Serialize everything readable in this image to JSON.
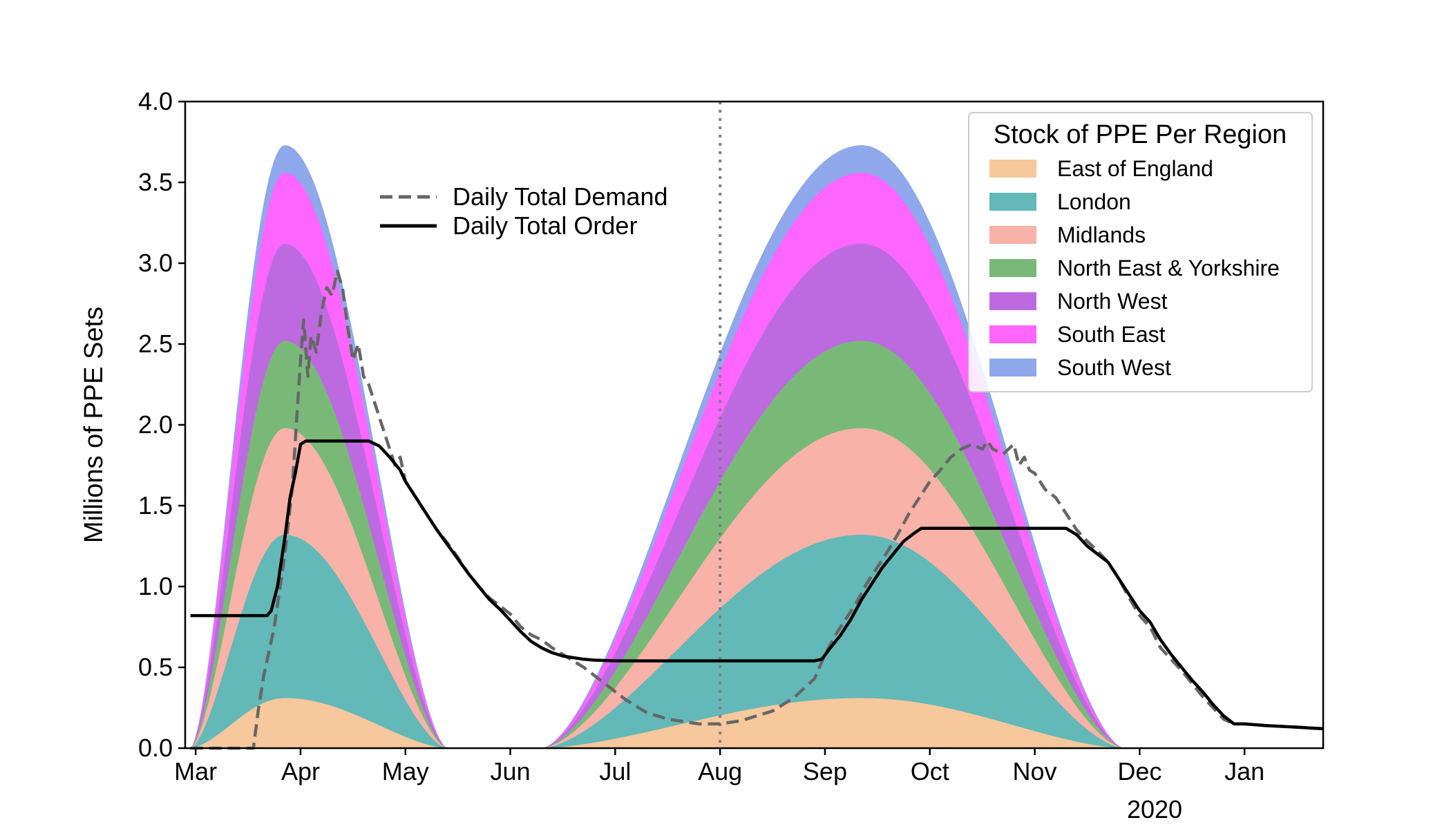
{
  "chart_data": {
    "type": "area",
    "title": "",
    "xlabel": "",
    "ylabel": "Millions of PPE Sets",
    "ylim": [
      0,
      4.0
    ],
    "xlim": [
      -0.1,
      10.75
    ],
    "yticks": [
      "0.0",
      "0.5",
      "1.0",
      "1.5",
      "2.0",
      "2.5",
      "3.0",
      "3.5",
      "4.0"
    ],
    "xticks": [
      {
        "month": 0,
        "label": "Mar"
      },
      {
        "month": 1,
        "label": "Apr"
      },
      {
        "month": 2,
        "label": "May"
      },
      {
        "month": 3,
        "label": "Jun"
      },
      {
        "month": 4,
        "label": "Jul"
      },
      {
        "month": 5,
        "label": "Aug"
      },
      {
        "month": 6,
        "label": "Sep"
      },
      {
        "month": 7,
        "label": "Oct"
      },
      {
        "month": 8,
        "label": "Nov"
      },
      {
        "month": 9,
        "label": "Dec"
      },
      {
        "month": 10,
        "label": "Jan"
      }
    ],
    "year_label": "2020",
    "vline_month": 5.0,
    "wave1": {
      "start": -0.05,
      "peak": 0.85,
      "end": 2.4
    },
    "wave2": {
      "start": 3.3,
      "peak": 6.35,
      "end": 8.85
    },
    "legend_title": "Stock of PPE Per Region",
    "stacked_series": [
      {
        "name": "East of England",
        "color": "#f6c89b",
        "peak": 0.31
      },
      {
        "name": "London",
        "color": "#63b8b8",
        "peak": 1.32
      },
      {
        "name": "Midlands",
        "color": "#f8b2a8",
        "peak": 1.98
      },
      {
        "name": "North East & Yorkshire",
        "color": "#79b978",
        "peak": 2.52
      },
      {
        "name": "North West",
        "color": "#bd6ae0",
        "peak": 3.12
      },
      {
        "name": "South East",
        "color": "#ff66ff",
        "peak": 3.56
      },
      {
        "name": "South West",
        "color": "#8fa8ec",
        "peak": 3.73
      }
    ],
    "lines": [
      {
        "name": "Daily Total Demand",
        "style": "dashed",
        "color": "#666666",
        "points": [
          [
            -0.05,
            0.0
          ],
          [
            0.55,
            0.0
          ],
          [
            0.6,
            0.25
          ],
          [
            0.65,
            0.45
          ],
          [
            0.75,
            0.75
          ],
          [
            0.85,
            1.2
          ],
          [
            0.92,
            1.6
          ],
          [
            0.97,
            2.1
          ],
          [
            1.0,
            2.4
          ],
          [
            1.03,
            2.65
          ],
          [
            1.07,
            2.3
          ],
          [
            1.1,
            2.55
          ],
          [
            1.15,
            2.45
          ],
          [
            1.2,
            2.7
          ],
          [
            1.25,
            2.85
          ],
          [
            1.3,
            2.8
          ],
          [
            1.35,
            2.95
          ],
          [
            1.4,
            2.85
          ],
          [
            1.45,
            2.6
          ],
          [
            1.5,
            2.4
          ],
          [
            1.55,
            2.5
          ],
          [
            1.6,
            2.3
          ],
          [
            1.65,
            2.25
          ],
          [
            1.7,
            2.15
          ],
          [
            1.75,
            2.05
          ],
          [
            1.8,
            1.95
          ],
          [
            1.85,
            1.85
          ],
          [
            1.9,
            1.75
          ],
          [
            1.95,
            1.8
          ],
          [
            2.0,
            1.65
          ],
          [
            2.1,
            1.55
          ],
          [
            2.2,
            1.45
          ],
          [
            2.3,
            1.35
          ],
          [
            2.4,
            1.27
          ],
          [
            2.5,
            1.18
          ],
          [
            2.6,
            1.08
          ],
          [
            2.7,
            1.0
          ],
          [
            2.8,
            0.93
          ],
          [
            2.9,
            0.88
          ],
          [
            3.0,
            0.83
          ],
          [
            3.1,
            0.75
          ],
          [
            3.2,
            0.7
          ],
          [
            3.3,
            0.67
          ],
          [
            3.4,
            0.62
          ],
          [
            3.5,
            0.58
          ],
          [
            3.6,
            0.54
          ],
          [
            3.7,
            0.5
          ],
          [
            3.8,
            0.45
          ],
          [
            3.9,
            0.4
          ],
          [
            4.0,
            0.35
          ],
          [
            4.1,
            0.3
          ],
          [
            4.2,
            0.26
          ],
          [
            4.3,
            0.22
          ],
          [
            4.4,
            0.2
          ],
          [
            4.5,
            0.18
          ],
          [
            4.6,
            0.17
          ],
          [
            4.7,
            0.16
          ],
          [
            4.8,
            0.15
          ],
          [
            4.9,
            0.15
          ],
          [
            5.0,
            0.15
          ],
          [
            5.1,
            0.16
          ],
          [
            5.2,
            0.17
          ],
          [
            5.3,
            0.19
          ],
          [
            5.4,
            0.21
          ],
          [
            5.5,
            0.23
          ],
          [
            5.6,
            0.27
          ],
          [
            5.7,
            0.31
          ],
          [
            5.8,
            0.37
          ],
          [
            5.9,
            0.43
          ],
          [
            6.0,
            0.58
          ],
          [
            6.1,
            0.7
          ],
          [
            6.2,
            0.8
          ],
          [
            6.3,
            0.9
          ],
          [
            6.4,
            1.02
          ],
          [
            6.5,
            1.12
          ],
          [
            6.6,
            1.22
          ],
          [
            6.7,
            1.33
          ],
          [
            6.8,
            1.45
          ],
          [
            6.9,
            1.55
          ],
          [
            7.0,
            1.65
          ],
          [
            7.1,
            1.72
          ],
          [
            7.2,
            1.8
          ],
          [
            7.3,
            1.85
          ],
          [
            7.4,
            1.88
          ],
          [
            7.5,
            1.85
          ],
          [
            7.55,
            1.9
          ],
          [
            7.6,
            1.85
          ],
          [
            7.7,
            1.82
          ],
          [
            7.8,
            1.88
          ],
          [
            7.85,
            1.75
          ],
          [
            7.9,
            1.8
          ],
          [
            7.95,
            1.72
          ],
          [
            8.0,
            1.7
          ],
          [
            8.05,
            1.65
          ],
          [
            8.1,
            1.6
          ],
          [
            8.2,
            1.55
          ],
          [
            8.3,
            1.45
          ],
          [
            8.4,
            1.35
          ],
          [
            8.5,
            1.28
          ],
          [
            8.6,
            1.22
          ],
          [
            8.7,
            1.15
          ],
          [
            8.8,
            1.05
          ],
          [
            8.9,
            0.93
          ],
          [
            9.0,
            0.82
          ],
          [
            9.1,
            0.75
          ],
          [
            9.2,
            0.62
          ],
          [
            9.3,
            0.55
          ],
          [
            9.4,
            0.48
          ],
          [
            9.5,
            0.4
          ],
          [
            9.6,
            0.32
          ],
          [
            9.7,
            0.25
          ],
          [
            9.8,
            0.18
          ],
          [
            9.9,
            0.15
          ],
          [
            10.0,
            0.15
          ],
          [
            10.2,
            0.14
          ],
          [
            10.5,
            0.13
          ],
          [
            10.75,
            0.12
          ]
        ]
      },
      {
        "name": "Daily Total Order",
        "style": "solid",
        "color": "#000000",
        "points": [
          [
            -0.05,
            0.82
          ],
          [
            0.68,
            0.82
          ],
          [
            0.72,
            0.85
          ],
          [
            0.78,
            1.0
          ],
          [
            0.85,
            1.3
          ],
          [
            0.9,
            1.55
          ],
          [
            0.95,
            1.7
          ],
          [
            1.0,
            1.88
          ],
          [
            1.05,
            1.9
          ],
          [
            1.3,
            1.9
          ],
          [
            1.65,
            1.9
          ],
          [
            1.75,
            1.87
          ],
          [
            1.85,
            1.8
          ],
          [
            1.95,
            1.72
          ],
          [
            2.0,
            1.65
          ],
          [
            2.1,
            1.55
          ],
          [
            2.2,
            1.45
          ],
          [
            2.3,
            1.35
          ],
          [
            2.4,
            1.26
          ],
          [
            2.5,
            1.17
          ],
          [
            2.6,
            1.08
          ],
          [
            2.7,
            1.0
          ],
          [
            2.8,
            0.92
          ],
          [
            2.9,
            0.86
          ],
          [
            3.0,
            0.79
          ],
          [
            3.1,
            0.72
          ],
          [
            3.2,
            0.66
          ],
          [
            3.3,
            0.62
          ],
          [
            3.4,
            0.59
          ],
          [
            3.5,
            0.57
          ],
          [
            3.6,
            0.56
          ],
          [
            3.7,
            0.55
          ],
          [
            3.8,
            0.545
          ],
          [
            4.0,
            0.54
          ],
          [
            5.0,
            0.54
          ],
          [
            5.9,
            0.54
          ],
          [
            5.97,
            0.55
          ],
          [
            6.05,
            0.62
          ],
          [
            6.15,
            0.7
          ],
          [
            6.25,
            0.8
          ],
          [
            6.35,
            0.92
          ],
          [
            6.45,
            1.02
          ],
          [
            6.55,
            1.12
          ],
          [
            6.65,
            1.2
          ],
          [
            6.75,
            1.28
          ],
          [
            6.85,
            1.33
          ],
          [
            6.92,
            1.36
          ],
          [
            7.2,
            1.36
          ],
          [
            8.0,
            1.36
          ],
          [
            8.3,
            1.36
          ],
          [
            8.4,
            1.32
          ],
          [
            8.5,
            1.25
          ],
          [
            8.6,
            1.2
          ],
          [
            8.7,
            1.15
          ],
          [
            8.8,
            1.05
          ],
          [
            8.9,
            0.95
          ],
          [
            9.0,
            0.85
          ],
          [
            9.1,
            0.78
          ],
          [
            9.2,
            0.67
          ],
          [
            9.3,
            0.58
          ],
          [
            9.4,
            0.5
          ],
          [
            9.5,
            0.42
          ],
          [
            9.6,
            0.35
          ],
          [
            9.7,
            0.27
          ],
          [
            9.8,
            0.2
          ],
          [
            9.9,
            0.15
          ],
          [
            10.0,
            0.15
          ],
          [
            10.2,
            0.14
          ],
          [
            10.5,
            0.13
          ],
          [
            10.75,
            0.12
          ]
        ]
      }
    ]
  }
}
